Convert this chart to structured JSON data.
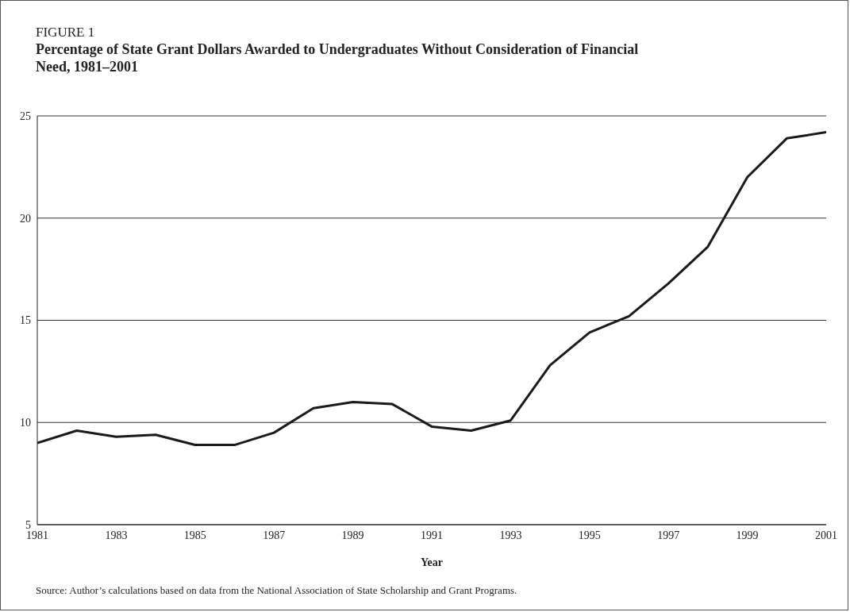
{
  "chart_data": {
    "type": "line",
    "title": "FIGURE 1",
    "subtitle": "Percentage of State Grant Dollars Awarded to Undergraduates Without Consideration of Financial Need, 1981–2001",
    "xlabel": "Year",
    "x": [
      1981,
      1982,
      1983,
      1984,
      1985,
      1986,
      1987,
      1988,
      1989,
      1990,
      1991,
      1992,
      1993,
      1994,
      1995,
      1996,
      1997,
      1998,
      1999,
      2000,
      2001
    ],
    "series": [
      {
        "color": "#1a1a1a",
        "values": [
          9.0,
          9.6,
          9.3,
          9.4,
          8.9,
          8.9,
          9.5,
          10.7,
          11.0,
          10.9,
          9.8,
          9.6,
          10.1,
          12.8,
          14.4,
          15.2,
          16.8,
          18.6,
          22.0,
          23.9,
          24.2
        ]
      }
    ],
    "xlim": [
      1981,
      2001
    ],
    "xticks": [
      1981,
      1983,
      1985,
      1987,
      1989,
      1991,
      1993,
      1995,
      1997,
      1999,
      2001
    ],
    "ylim": [
      5,
      25
    ],
    "yticks": [
      5,
      10,
      15,
      20,
      25
    ],
    "grid": "y",
    "legend": false,
    "marker": "none",
    "line_style": "solid",
    "annotations": [
      "Source: Author’s calculations based on data from the National Association of State Scholarship and Grant Programs."
    ]
  }
}
